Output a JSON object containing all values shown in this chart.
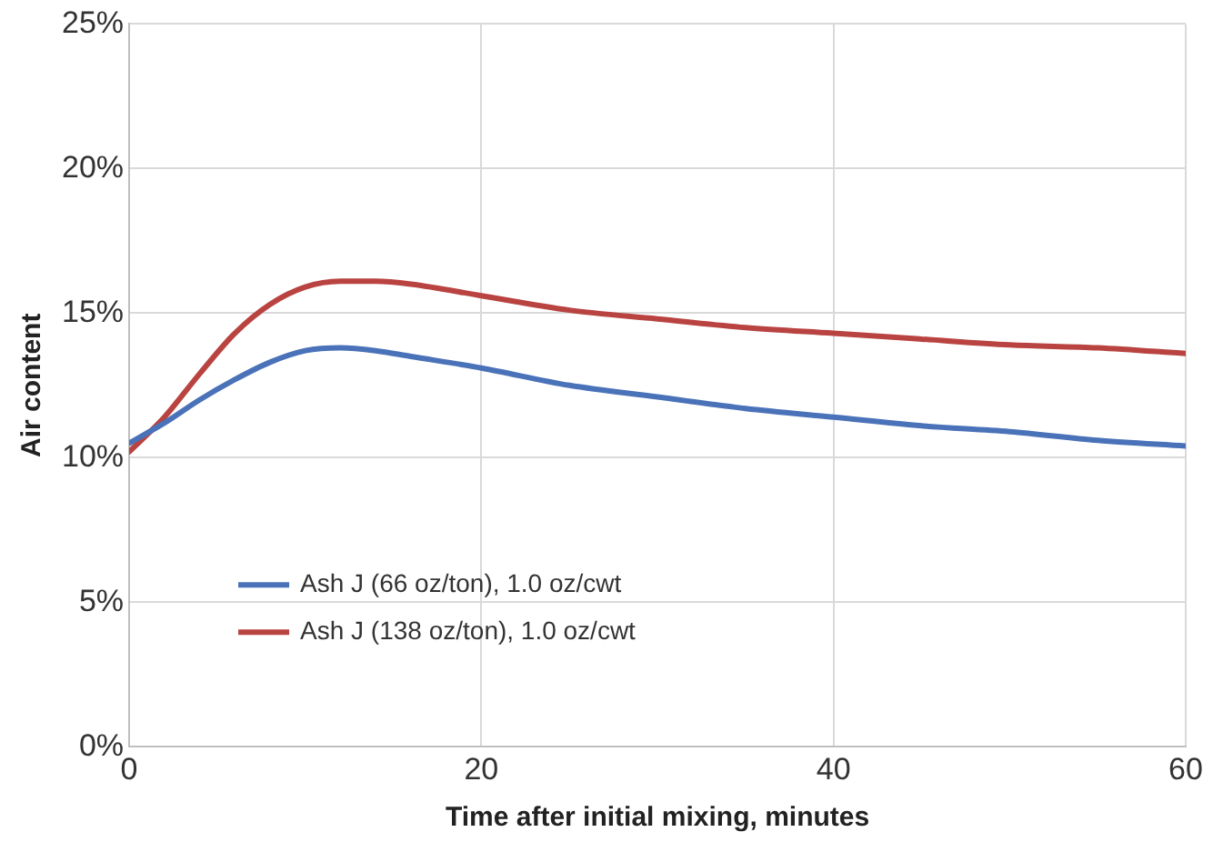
{
  "chart_data": {
    "type": "line",
    "xlabel": "Time after initial mixing, minutes",
    "ylabel": "Air content",
    "x": [
      0,
      2,
      4,
      6,
      8,
      10,
      12,
      14,
      16,
      20,
      25,
      30,
      35,
      40,
      45,
      50,
      55,
      60
    ],
    "series": [
      {
        "name": "Ash J (66 oz/ton), 1.0 oz/cwt",
        "color": "#4a72b8",
        "values": [
          10.5,
          11.2,
          12.0,
          12.7,
          13.3,
          13.7,
          13.8,
          13.7,
          13.5,
          13.1,
          12.5,
          12.1,
          11.7,
          11.4,
          11.1,
          10.9,
          10.6,
          10.4
        ]
      },
      {
        "name": "Ash J (138 oz/ton), 1.0 oz/cwt",
        "color": "#b94340",
        "values": [
          10.2,
          11.4,
          12.9,
          14.3,
          15.3,
          15.9,
          16.1,
          16.1,
          16.0,
          15.6,
          15.1,
          14.8,
          14.5,
          14.3,
          14.1,
          13.9,
          13.8,
          13.6
        ]
      }
    ],
    "xlim": [
      0,
      60
    ],
    "xticks": [
      0,
      20,
      40,
      60
    ],
    "ylim": [
      0,
      25
    ],
    "yticks": [
      {
        "value": 0,
        "label": "0%"
      },
      {
        "value": 5,
        "label": "5%"
      },
      {
        "value": 10,
        "label": "10%"
      },
      {
        "value": 15,
        "label": "15%"
      },
      {
        "value": 20,
        "label": "20%"
      },
      {
        "value": 25,
        "label": "25%"
      }
    ],
    "grid": true,
    "legend": "bottom",
    "marker": "none",
    "line_style": "solid"
  }
}
